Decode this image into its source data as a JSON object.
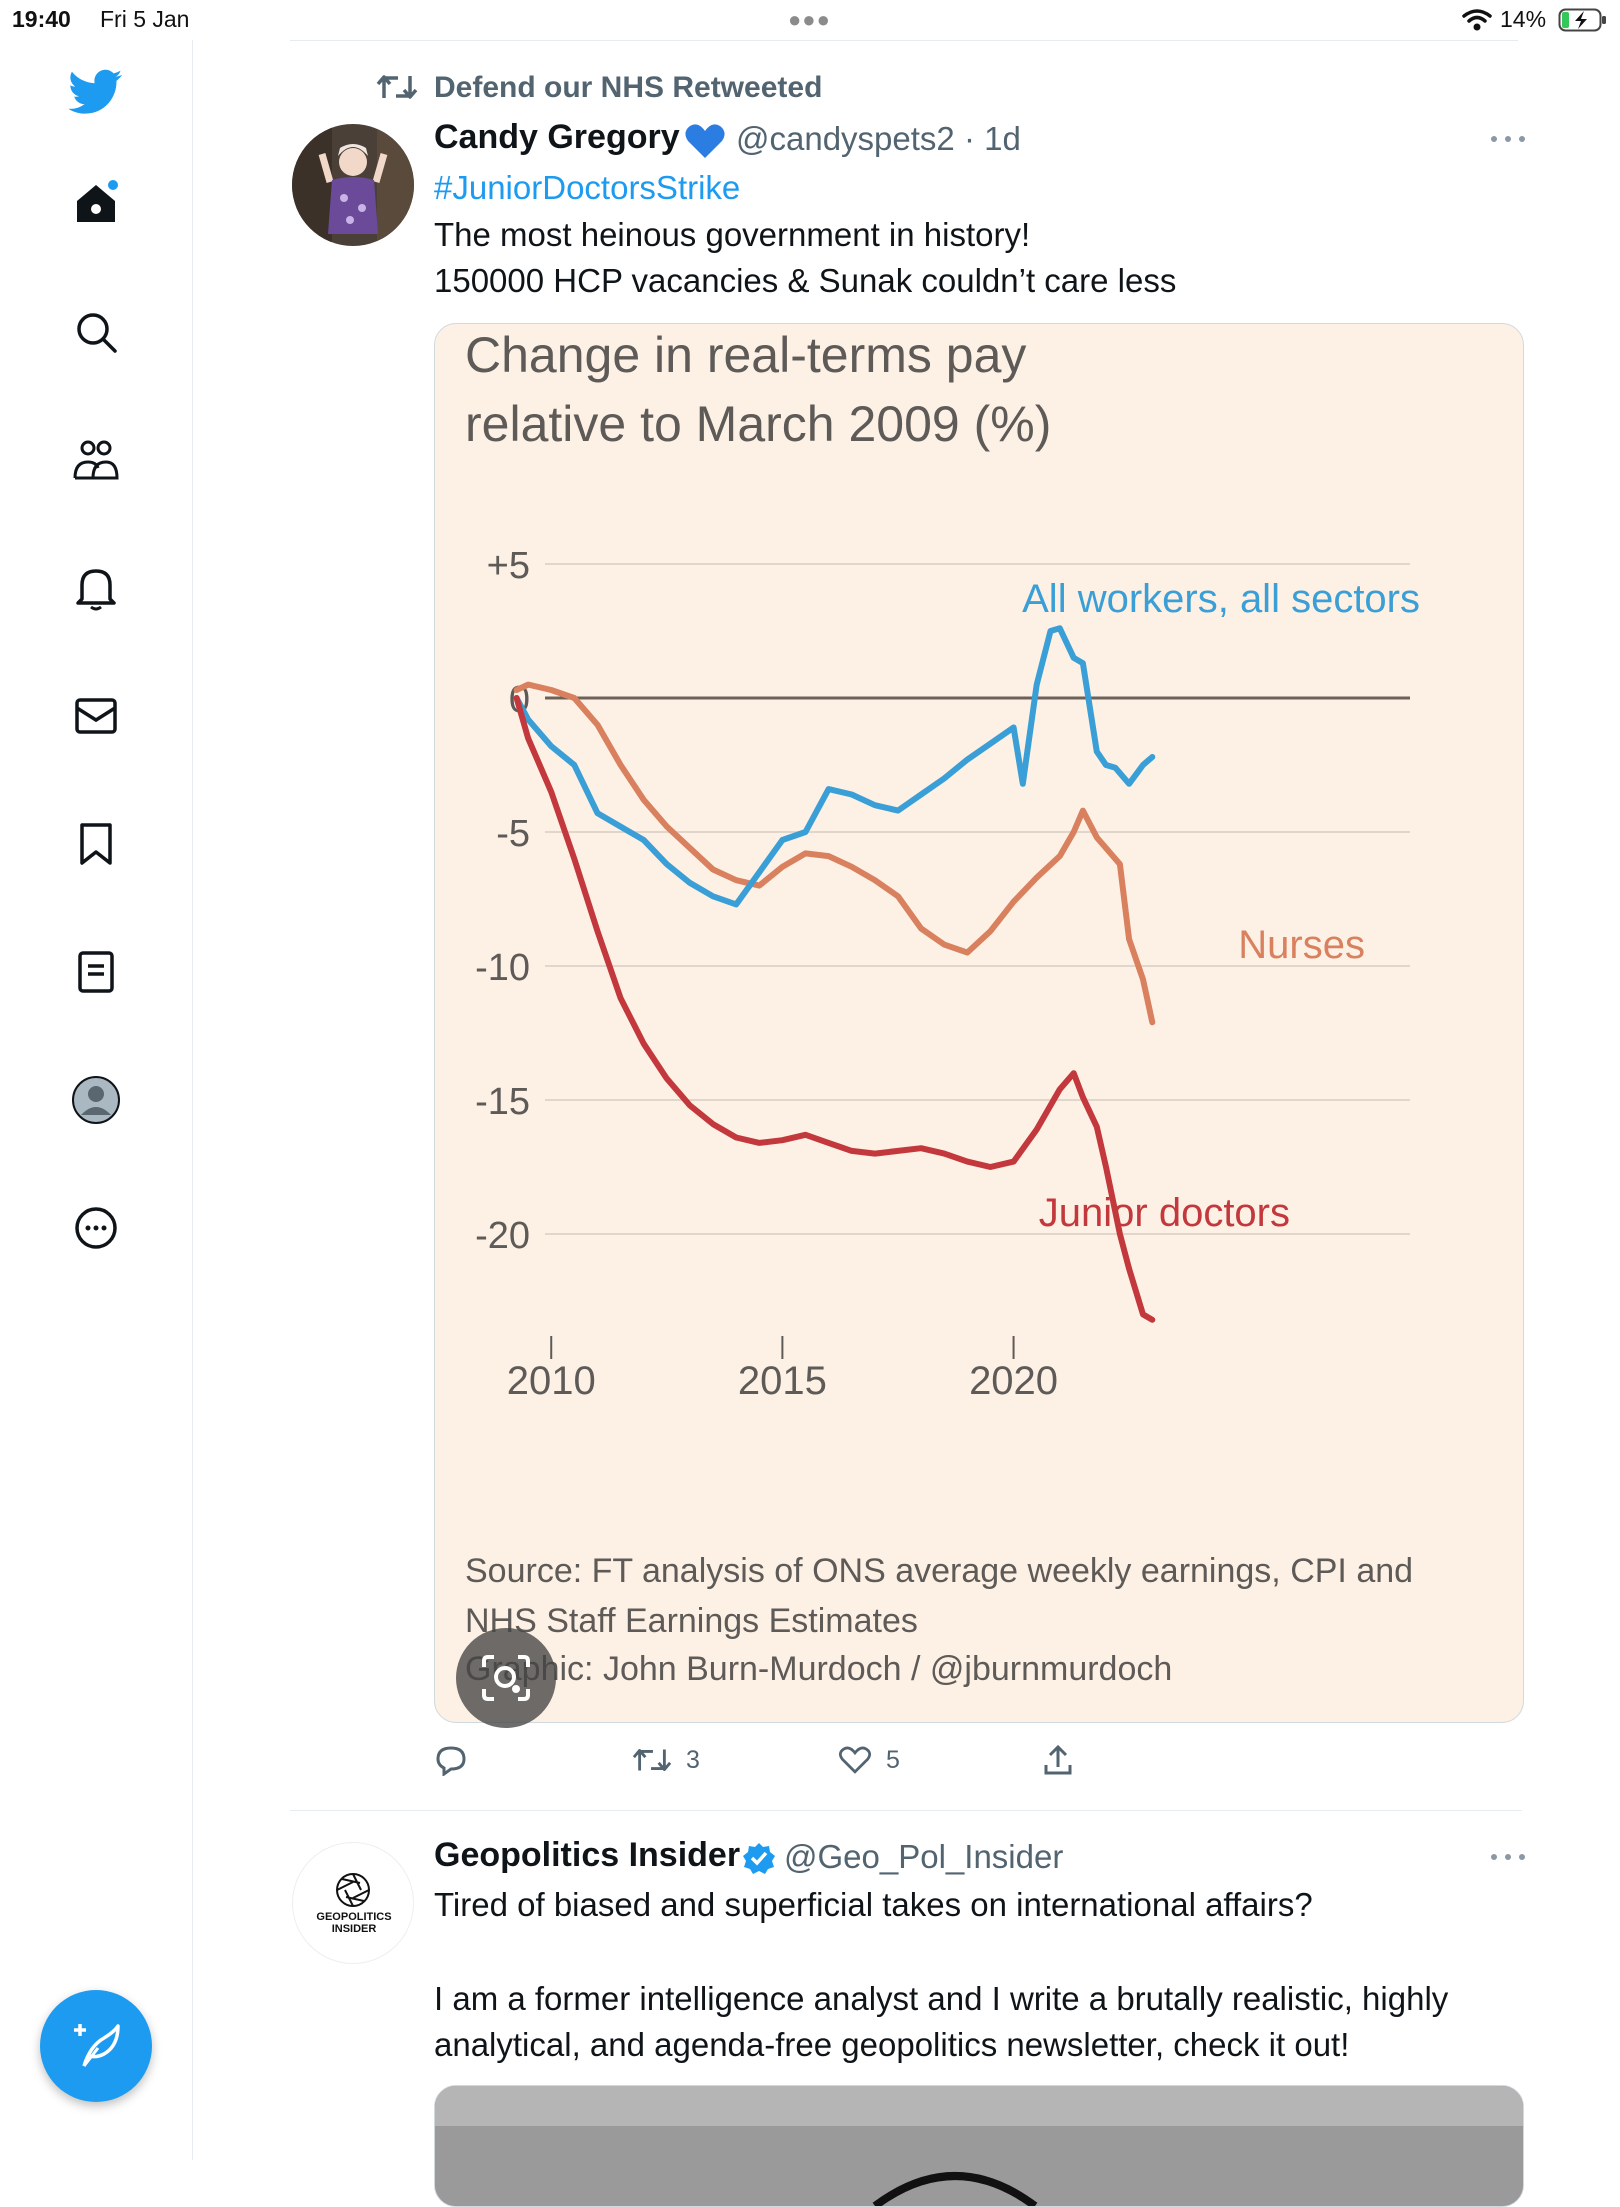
{
  "status_bar": {
    "time": "19:40",
    "date": "Fri 5 Jan",
    "battery": "14%"
  },
  "icons": {
    "logo": "twitter-bird-icon",
    "home": "home-icon",
    "search": "search-icon",
    "communities": "communities-icon",
    "notifications": "bell-icon",
    "messages": "mail-icon",
    "bookmarks": "bookmark-icon",
    "lists": "list-icon",
    "profile": "profile-icon",
    "more": "more-circle-icon",
    "compose": "compose-icon"
  },
  "colors": {
    "accent": "#1d9bf0",
    "muted": "#536471",
    "chart_bg": "#fdf1e5"
  },
  "tweet1": {
    "retweet_context": "Defend our NHS Retweeted",
    "author_name": "Candy Gregory",
    "author_handle": "@candyspets2 · 1d",
    "hashtag": "#JuniorDoctorsStrike",
    "line1": "The most heinous government in history!",
    "line2": "150000 HCP vacancies & Sunak couldn’t care less",
    "retweets": "3",
    "likes": "5"
  },
  "chart_data": {
    "type": "line",
    "title": "Change in real-terms pay relative to March 2009 (%)",
    "title_lines": [
      "Change in real-terms pay",
      "relative to March 2009 (%)"
    ],
    "ylim": [
      -23,
      6
    ],
    "yticks": [
      "+5",
      "0",
      "-5",
      "-10",
      "-15",
      "-20"
    ],
    "xticks": [
      "2010",
      "2015",
      "2020"
    ],
    "series": [
      {
        "name": "All workers, all sectors",
        "color": "#3a9fd6",
        "x": [
          2009.25,
          2009.5,
          2010.0,
          2010.5,
          2011.0,
          2011.5,
          2012.0,
          2012.5,
          2013.0,
          2013.5,
          2014.0,
          2014.5,
          2015.0,
          2015.5,
          2016.0,
          2016.5,
          2017.0,
          2017.5,
          2018.0,
          2018.5,
          2019.0,
          2019.5,
          2020.0,
          2020.2,
          2020.5,
          2020.8,
          2021.0,
          2021.3,
          2021.5,
          2021.8,
          2022.0,
          2022.2,
          2022.5,
          2022.8,
          2023.0
        ],
        "y": [
          0,
          -0.8,
          -1.8,
          -2.5,
          -4.3,
          -4.8,
          -5.3,
          -6.2,
          -6.9,
          -7.4,
          -7.7,
          -6.5,
          -5.3,
          -5.0,
          -3.4,
          -3.6,
          -4.0,
          -4.2,
          -3.6,
          -3.0,
          -2.3,
          -1.7,
          -1.1,
          -3.2,
          0.5,
          2.5,
          2.6,
          1.5,
          1.3,
          -2.0,
          -2.5,
          -2.6,
          -3.2,
          -2.5,
          -2.2
        ]
      },
      {
        "name": "Nurses",
        "color": "#d9805f",
        "x": [
          2009.25,
          2009.5,
          2010.0,
          2010.5,
          2011.0,
          2011.5,
          2012.0,
          2012.5,
          2013.0,
          2013.5,
          2014.0,
          2014.5,
          2015.0,
          2015.5,
          2016.0,
          2016.5,
          2017.0,
          2017.5,
          2018.0,
          2018.5,
          2019.0,
          2019.5,
          2020.0,
          2020.5,
          2021.0,
          2021.3,
          2021.5,
          2021.8,
          2022.0,
          2022.3,
          2022.5,
          2022.8,
          2023.0
        ],
        "y": [
          0.3,
          0.5,
          0.3,
          0,
          -1.0,
          -2.5,
          -3.8,
          -4.8,
          -5.6,
          -6.4,
          -6.8,
          -7.0,
          -6.3,
          -5.8,
          -5.9,
          -6.3,
          -6.8,
          -7.4,
          -8.6,
          -9.2,
          -9.5,
          -8.7,
          -7.6,
          -6.7,
          -5.9,
          -5.0,
          -4.2,
          -5.2,
          -5.6,
          -6.2,
          -9.0,
          -10.5,
          -12.1
        ]
      },
      {
        "name": "Junior doctors",
        "color": "#c3383c",
        "x": [
          2009.25,
          2009.5,
          2010.0,
          2010.5,
          2011.0,
          2011.5,
          2012.0,
          2012.5,
          2013.0,
          2013.5,
          2014.0,
          2014.5,
          2015.0,
          2015.5,
          2016.0,
          2016.5,
          2017.0,
          2017.5,
          2018.0,
          2018.5,
          2019.0,
          2019.5,
          2020.0,
          2020.5,
          2021.0,
          2021.3,
          2021.5,
          2021.8,
          2022.0,
          2022.3,
          2022.5,
          2022.8,
          2023.0
        ],
        "y": [
          0,
          -1.5,
          -3.5,
          -6.0,
          -8.7,
          -11.2,
          -12.9,
          -14.2,
          -15.2,
          -15.9,
          -16.4,
          -16.6,
          -16.5,
          -16.3,
          -16.6,
          -16.9,
          -17.0,
          -16.9,
          -16.8,
          -17.0,
          -17.3,
          -17.5,
          -17.3,
          -16.1,
          -14.6,
          -14.0,
          -14.9,
          -16.0,
          -17.5,
          -20.0,
          -21.3,
          -23.0,
          -23.2
        ]
      }
    ],
    "source_lines": [
      "Source: FT analysis of ONS average weekly earnings, CPI and",
      "NHS Staff Earnings Estimates",
      "Graphic: John Burn-Murdoch / @jburnmurdoch"
    ]
  },
  "tweet2": {
    "author_name": "Geopolitics Insider",
    "author_handle": "@Geo_Pol_Insider",
    "avatar_text": "GEOPOLITICS INSIDER",
    "line1": "Tired of biased and superficial takes on international affairs?",
    "line2": "I am a former intelligence analyst and I write a brutally realistic, highly",
    "line3": "analytical, and agenda-free geopolitics newsletter, check it out!"
  }
}
